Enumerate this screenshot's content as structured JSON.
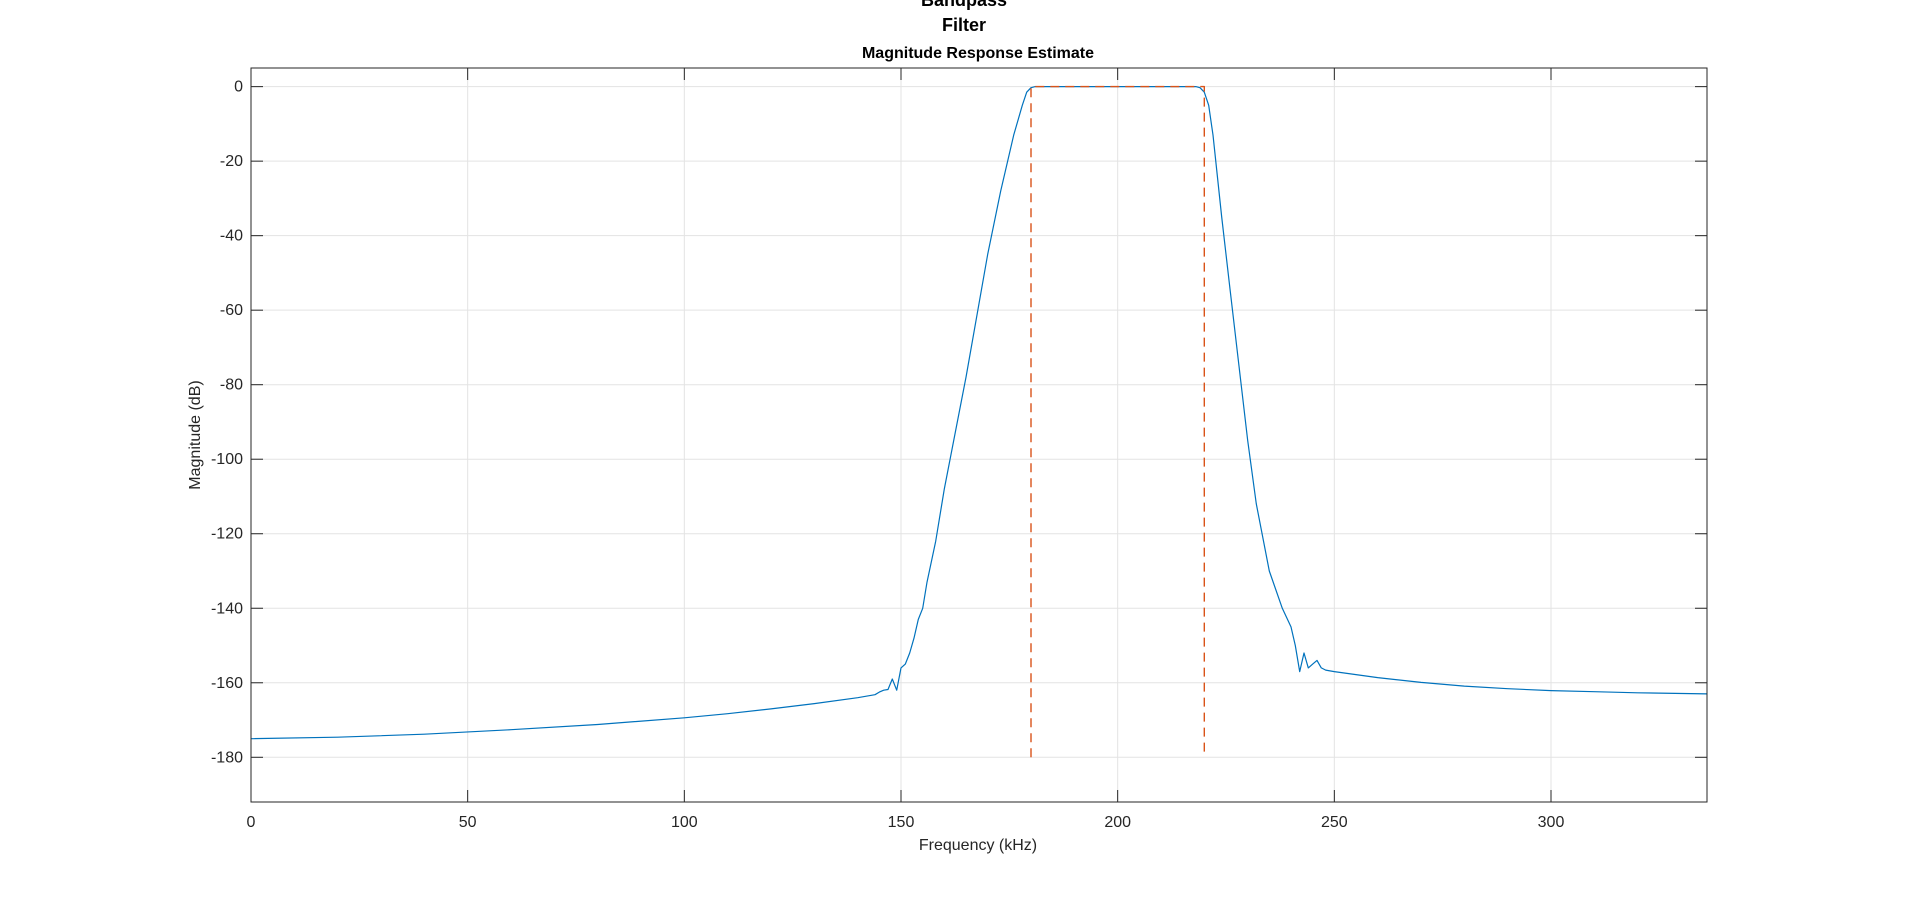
{
  "figure": {
    "title_lines": [
      "Bandpass",
      "Filter"
    ],
    "subtitle": "Magnitude Response Estimate",
    "background": "#ffffff"
  },
  "chart_data": {
    "type": "line",
    "title": "Bandpass Filter",
    "subtitle": "Magnitude Response Estimate",
    "xlabel": "Frequency (kHz)",
    "ylabel": "Magnitude (dB)",
    "xlim": [
      0,
      336
    ],
    "ylim": [
      -192,
      5
    ],
    "xticks": [
      0,
      50,
      100,
      150,
      200,
      250,
      300
    ],
    "yticks": [
      0,
      -20,
      -40,
      -60,
      -80,
      -100,
      -120,
      -140,
      -160,
      -180
    ],
    "grid": true,
    "legend": "none",
    "series": [
      {
        "style": "solid",
        "color": "#0072BD",
        "x": [
          0,
          20,
          40,
          60,
          80,
          100,
          110,
          120,
          130,
          140,
          142,
          144,
          145,
          146,
          147,
          148,
          149,
          150,
          151,
          152,
          153,
          154,
          155,
          156,
          158,
          160,
          165,
          170,
          173,
          176,
          178,
          179,
          180,
          181,
          182,
          185,
          190,
          200,
          210,
          215,
          218,
          219,
          220,
          221,
          222,
          224,
          226,
          228,
          230,
          232,
          235,
          238,
          240,
          241,
          242,
          243,
          244,
          245,
          246,
          247,
          248,
          250,
          255,
          260,
          270,
          280,
          290,
          300,
          310,
          320,
          336
        ],
        "y": [
          -175,
          -174.6,
          -173.8,
          -172.6,
          -171.2,
          -169.4,
          -168.3,
          -167,
          -165.6,
          -164,
          -163.6,
          -163.2,
          -162.5,
          -162,
          -161.8,
          -159,
          -162,
          -156,
          -155,
          -152,
          -148,
          -143,
          -140,
          -133,
          -122,
          -108,
          -78,
          -45,
          -28,
          -13,
          -5,
          -1.5,
          -0.3,
          0,
          0,
          0,
          0,
          0,
          0,
          0,
          0,
          -0.3,
          -1.5,
          -5,
          -13,
          -35,
          -55,
          -75,
          -95,
          -112,
          -130,
          -140,
          -145,
          -150,
          -157,
          -152,
          -156,
          -155,
          -154,
          -156,
          -156.6,
          -157,
          -157.8,
          -158.6,
          -159.9,
          -160.9,
          -161.6,
          -162.1,
          -162.4,
          -162.7,
          -163
        ]
      },
      {
        "style": "dashed",
        "color": "#D95319",
        "x": [
          180,
          180,
          220,
          220
        ],
        "y": [
          -180,
          0,
          0,
          -180
        ]
      }
    ]
  }
}
